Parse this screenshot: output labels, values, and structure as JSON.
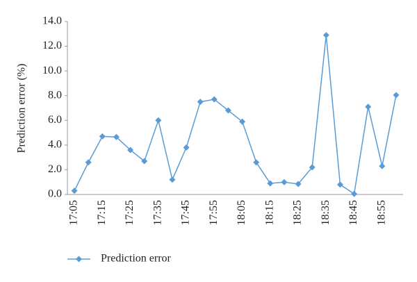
{
  "chart_data": {
    "type": "line",
    "y_label": "Prediction error (%)",
    "categories": [
      "17:05",
      null,
      "17:15",
      null,
      "17:25",
      null,
      "17:35",
      null,
      "17:45",
      null,
      "17:55",
      null,
      "18:05",
      null,
      "18:15",
      null,
      "18:25",
      null,
      "18:35",
      null,
      "18:45",
      null,
      "18:55",
      null
    ],
    "series": [
      {
        "name": "Prediction error",
        "color": "#5b9bd5",
        "values": [
          0.3,
          2.6,
          4.7,
          4.65,
          3.6,
          2.7,
          6.0,
          1.2,
          3.8,
          7.5,
          7.7,
          6.8,
          5.9,
          2.6,
          0.9,
          1.0,
          0.85,
          2.2,
          12.9,
          0.8,
          0.05,
          7.1,
          2.3,
          8.05
        ]
      }
    ],
    "ylim": [
      0,
      14
    ],
    "yticks": [
      {
        "value": 0,
        "label": "0.0"
      },
      {
        "value": 2,
        "label": "2.0"
      },
      {
        "value": 4,
        "label": "4.0"
      },
      {
        "value": 6,
        "label": "6.0"
      },
      {
        "value": 8,
        "label": "8.0"
      },
      {
        "value": 10,
        "label": "10.0"
      },
      {
        "value": 12,
        "label": "12.0"
      },
      {
        "value": 14,
        "label": "14.0"
      }
    ],
    "grid": false,
    "legend": "bottom"
  }
}
